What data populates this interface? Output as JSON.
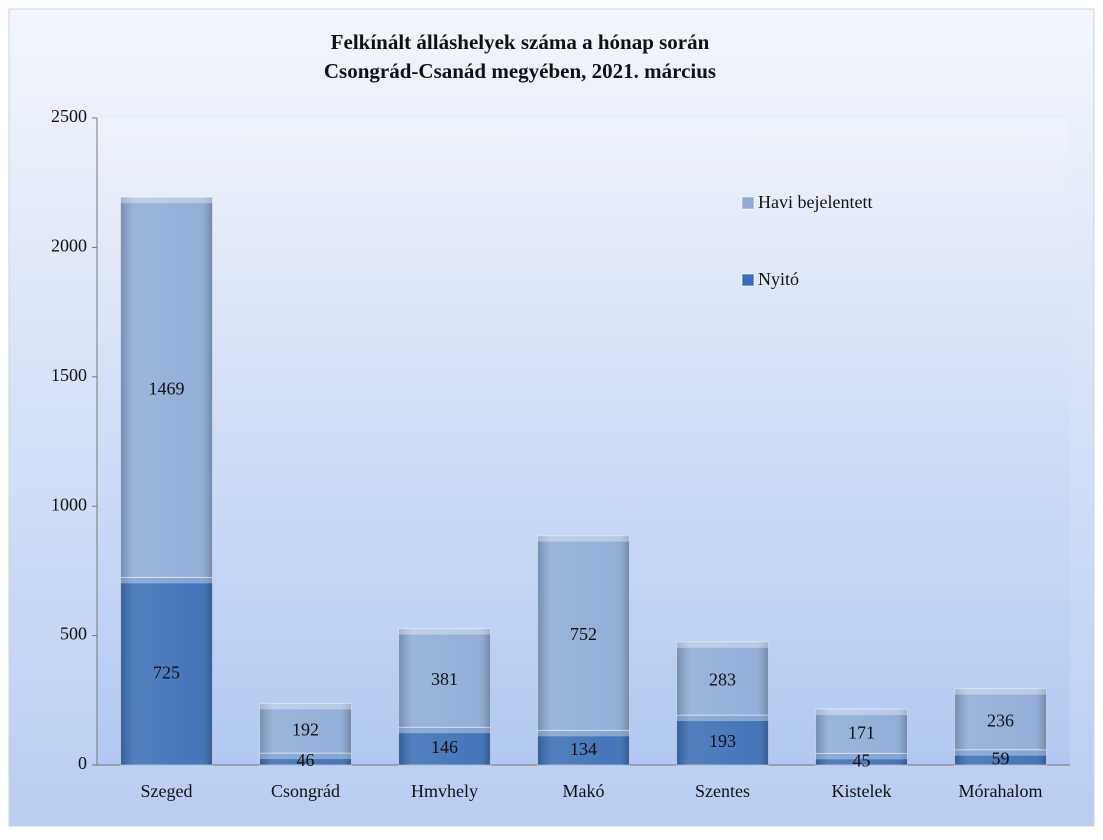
{
  "chart_data": {
    "type": "stacked_bar",
    "title": [
      "Felkínált álláshelyek száma a hónap során",
      "Csongrád-Csanád megyében, 2021. március"
    ],
    "categories": [
      "Szeged",
      "Csongrád",
      "Hmvhely",
      "Makó",
      "Szentes",
      "Kistelek",
      "Mórahalom"
    ],
    "series": [
      {
        "name": "Nyitó",
        "color": "#3b6fb6",
        "values": [
          725,
          46,
          146,
          134,
          193,
          45,
          59
        ]
      },
      {
        "name": "Havi bejelentett",
        "color": "#8eaad6",
        "values": [
          1469,
          192,
          381,
          752,
          283,
          171,
          236
        ]
      }
    ],
    "ylim": [
      0,
      2500
    ],
    "yticks": [
      0,
      500,
      1000,
      1500,
      2000,
      2500
    ],
    "grid": false,
    "legend": "upper right"
  }
}
